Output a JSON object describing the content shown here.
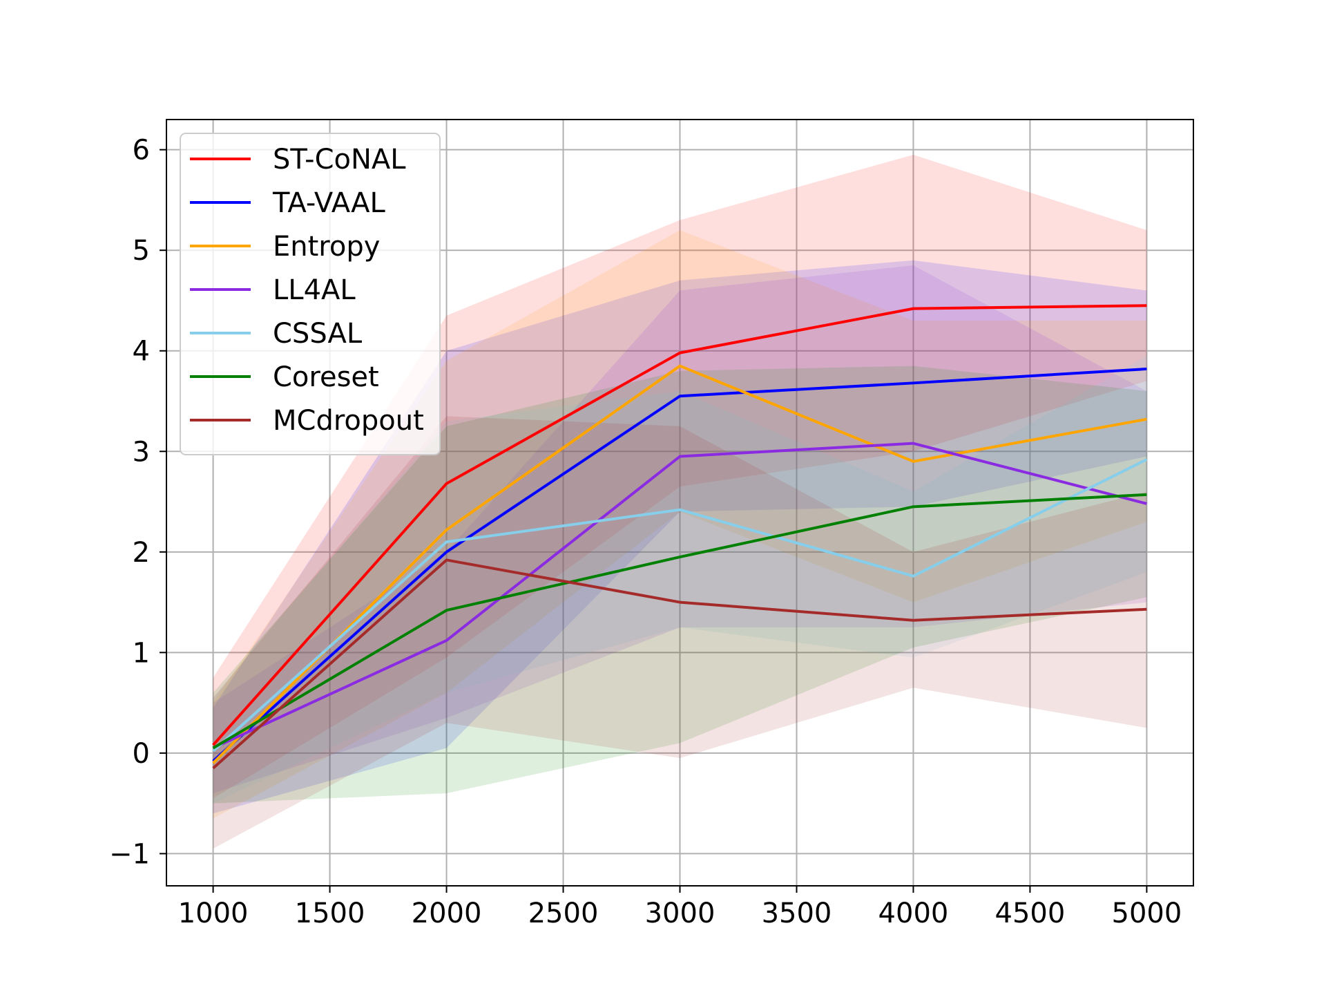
{
  "chart_data": {
    "type": "line",
    "title": "",
    "xlabel": "",
    "ylabel": "",
    "x": [
      1000,
      2000,
      3000,
      4000,
      5000
    ],
    "xlim": [
      800,
      5200
    ],
    "ylim": [
      -1.32,
      6.3
    ],
    "xticks": [
      1000,
      1500,
      2000,
      2500,
      3000,
      3500,
      4000,
      4500,
      5000
    ],
    "xtick_labels": [
      "1000",
      "1500",
      "2000",
      "2500",
      "3000",
      "3500",
      "4000",
      "4500",
      "5000"
    ],
    "yticks": [
      -1,
      0,
      1,
      2,
      3,
      4,
      5,
      6
    ],
    "ytick_labels": [
      "−1",
      "0",
      "1",
      "2",
      "3",
      "4",
      "5",
      "6"
    ],
    "grid": true,
    "legend_position": "upper-left",
    "band_opacity": 0.13,
    "series": [
      {
        "name": "ST-CoNAL",
        "color": "#ff0000",
        "values": [
          0.08,
          2.68,
          3.98,
          4.42,
          4.45
        ],
        "lower": [
          -0.45,
          0.95,
          2.65,
          3.0,
          3.7
        ],
        "upper": [
          0.75,
          4.35,
          5.3,
          5.95,
          5.2
        ]
      },
      {
        "name": "TA-VAAL",
        "color": "#0000ff",
        "values": [
          -0.08,
          2.0,
          3.55,
          3.68,
          3.82
        ],
        "lower": [
          -0.6,
          0.05,
          2.4,
          2.45,
          2.95
        ],
        "upper": [
          0.45,
          4.0,
          4.7,
          4.9,
          4.6
        ]
      },
      {
        "name": "Entropy",
        "color": "#ffa500",
        "values": [
          -0.1,
          2.22,
          3.85,
          2.9,
          3.32
        ],
        "lower": [
          -0.65,
          0.6,
          2.4,
          1.5,
          2.3
        ],
        "upper": [
          0.5,
          3.9,
          5.2,
          4.3,
          4.3
        ]
      },
      {
        "name": "LL4AL",
        "color": "#8a2be2",
        "values": [
          0.05,
          1.12,
          2.95,
          3.08,
          2.48
        ],
        "lower": [
          -0.4,
          0.35,
          1.25,
          1.25,
          1.5
        ],
        "upper": [
          0.5,
          2.0,
          4.6,
          4.85,
          3.6
        ]
      },
      {
        "name": "CSSAL",
        "color": "#87ceeb",
        "values": [
          0.02,
          2.1,
          2.42,
          1.76,
          2.92
        ],
        "lower": [
          -0.5,
          0.6,
          1.25,
          0.95,
          1.8
        ],
        "upper": [
          0.55,
          3.3,
          3.6,
          2.6,
          3.95
        ]
      },
      {
        "name": "Coreset",
        "color": "#008000",
        "values": [
          0.05,
          1.42,
          1.95,
          2.45,
          2.57
        ],
        "lower": [
          -0.5,
          -0.4,
          0.1,
          1.05,
          1.55
        ],
        "upper": [
          0.6,
          3.25,
          3.8,
          3.85,
          3.6
        ]
      },
      {
        "name": "MCdropout",
        "color": "#a52a2a",
        "values": [
          -0.15,
          1.92,
          1.5,
          1.32,
          1.43
        ],
        "lower": [
          -0.95,
          0.3,
          -0.05,
          0.65,
          0.25
        ],
        "upper": [
          0.55,
          3.35,
          3.25,
          2.0,
          2.6
        ]
      }
    ]
  }
}
